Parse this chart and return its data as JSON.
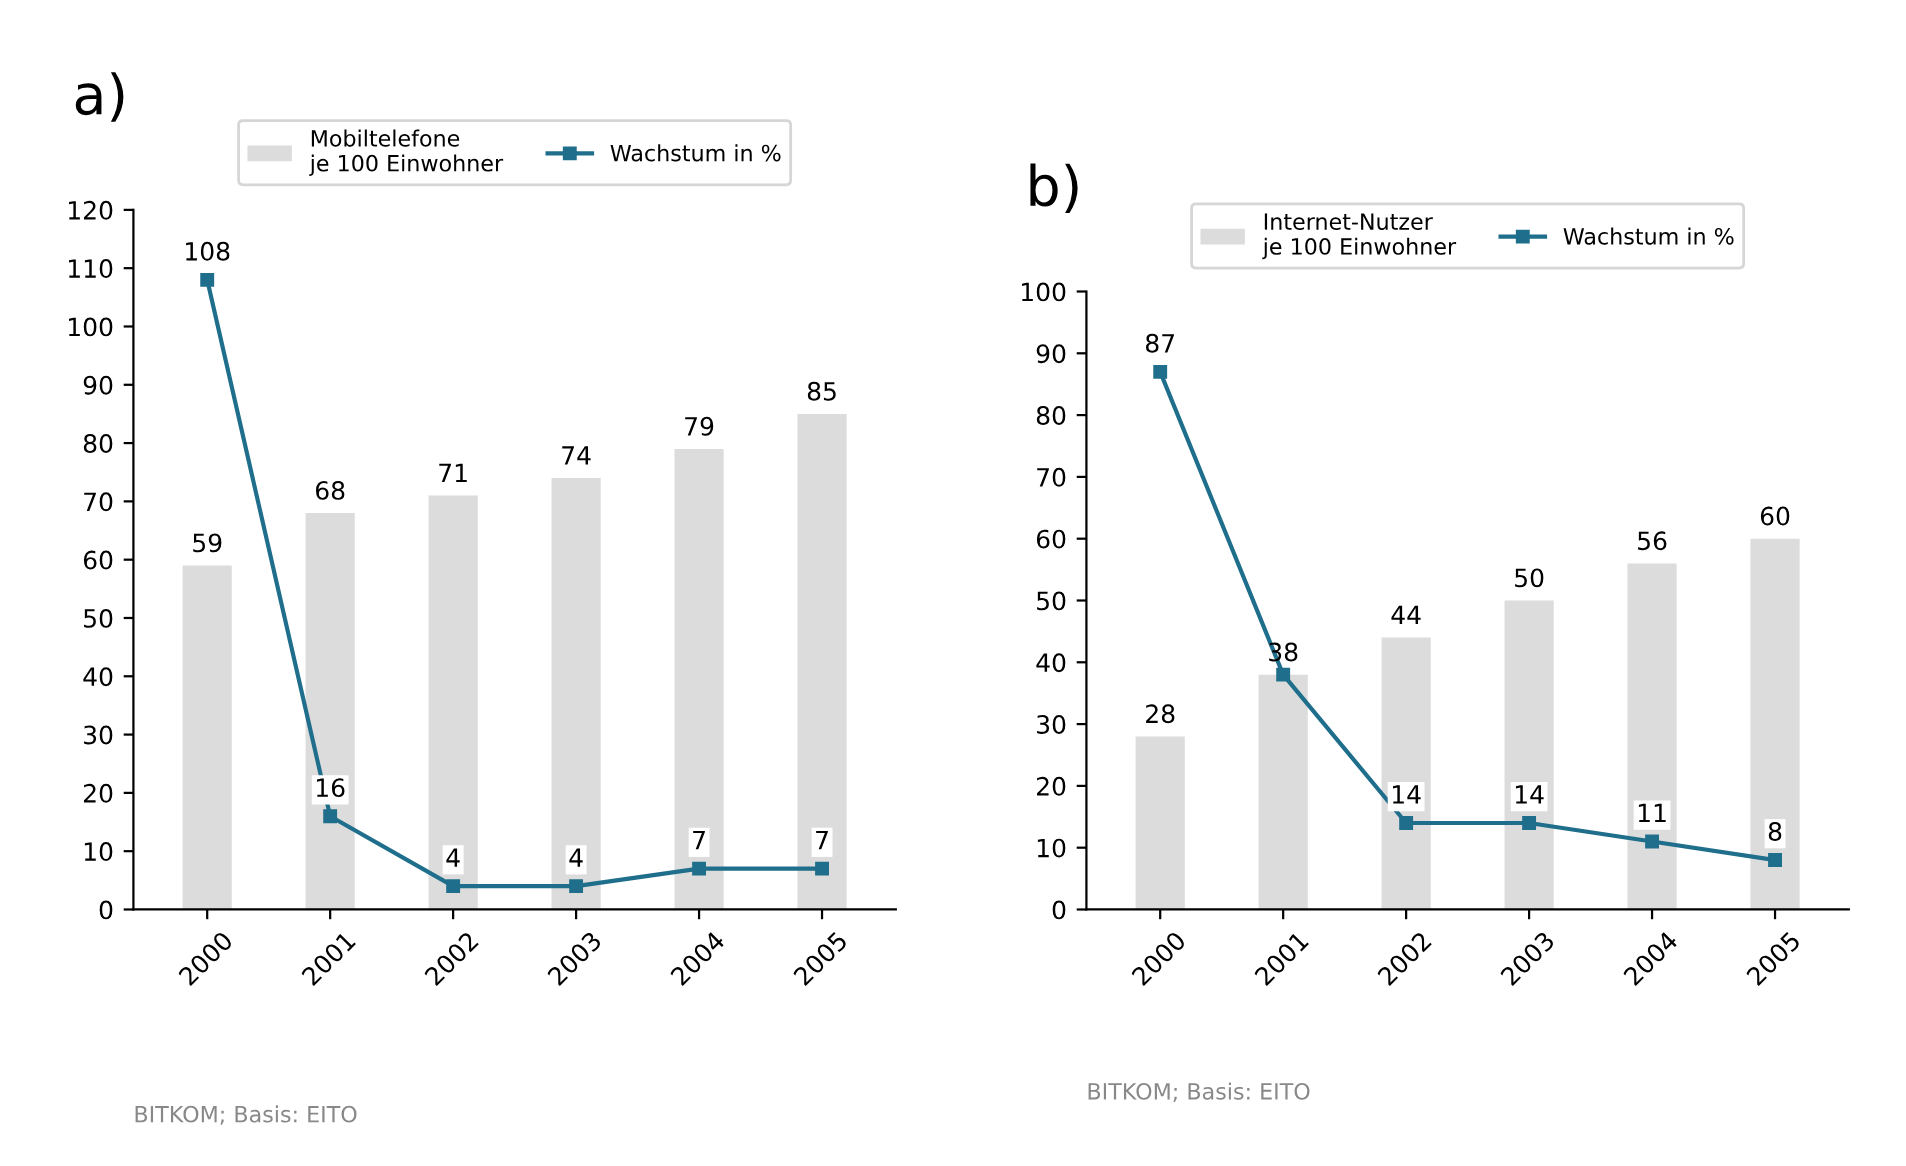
{
  "chart_data": [
    {
      "type": "bar",
      "title": "a)",
      "categories": [
        "2000",
        "2001",
        "2002",
        "2003",
        "2004",
        "2005"
      ],
      "ylim": [
        0,
        120
      ],
      "yticks": [
        0,
        10,
        20,
        30,
        40,
        50,
        60,
        70,
        80,
        90,
        100,
        110,
        120
      ],
      "legend": "top",
      "marker": "square",
      "annotations": [
        "BITKOM; Basis: EITO"
      ],
      "series": [
        {
          "name": "Mobiltelefone\nje 100 Einwohner",
          "color": "#dcdcdc",
          "values": [
            59,
            68,
            71,
            74,
            79,
            85
          ],
          "value_labels": [
            "59",
            "68",
            "71",
            "74",
            "79",
            "85"
          ]
        },
        {
          "name": "Wachstum in %",
          "type": "line",
          "color": "#1f6e8c",
          "values": [
            108,
            16,
            4,
            4,
            7,
            7
          ],
          "value_labels": [
            "108",
            "16",
            "4",
            "4",
            "7",
            "7"
          ]
        }
      ]
    },
    {
      "type": "bar",
      "title": "b)",
      "categories": [
        "2000",
        "2001",
        "2002",
        "2003",
        "2004",
        "2005"
      ],
      "ylim": [
        0,
        100
      ],
      "yticks": [
        0,
        10,
        20,
        30,
        40,
        50,
        60,
        70,
        80,
        90,
        100
      ],
      "legend": "top",
      "marker": "square",
      "annotations": [
        "BITKOM; Basis: EITO"
      ],
      "series": [
        {
          "name": "Internet-Nutzer\nje 100 Einwohner",
          "color": "#dcdcdc",
          "values": [
            28,
            38,
            44,
            50,
            56,
            60
          ],
          "value_labels": [
            "28",
            "38",
            "44",
            "50",
            "56",
            "60"
          ]
        },
        {
          "name": "Wachstum in %",
          "type": "line",
          "color": "#1f6e8c",
          "values": [
            87,
            38,
            14,
            14,
            11,
            8
          ],
          "value_labels": [
            "87",
            null,
            "14",
            "14",
            "11",
            "8"
          ]
        }
      ]
    }
  ]
}
